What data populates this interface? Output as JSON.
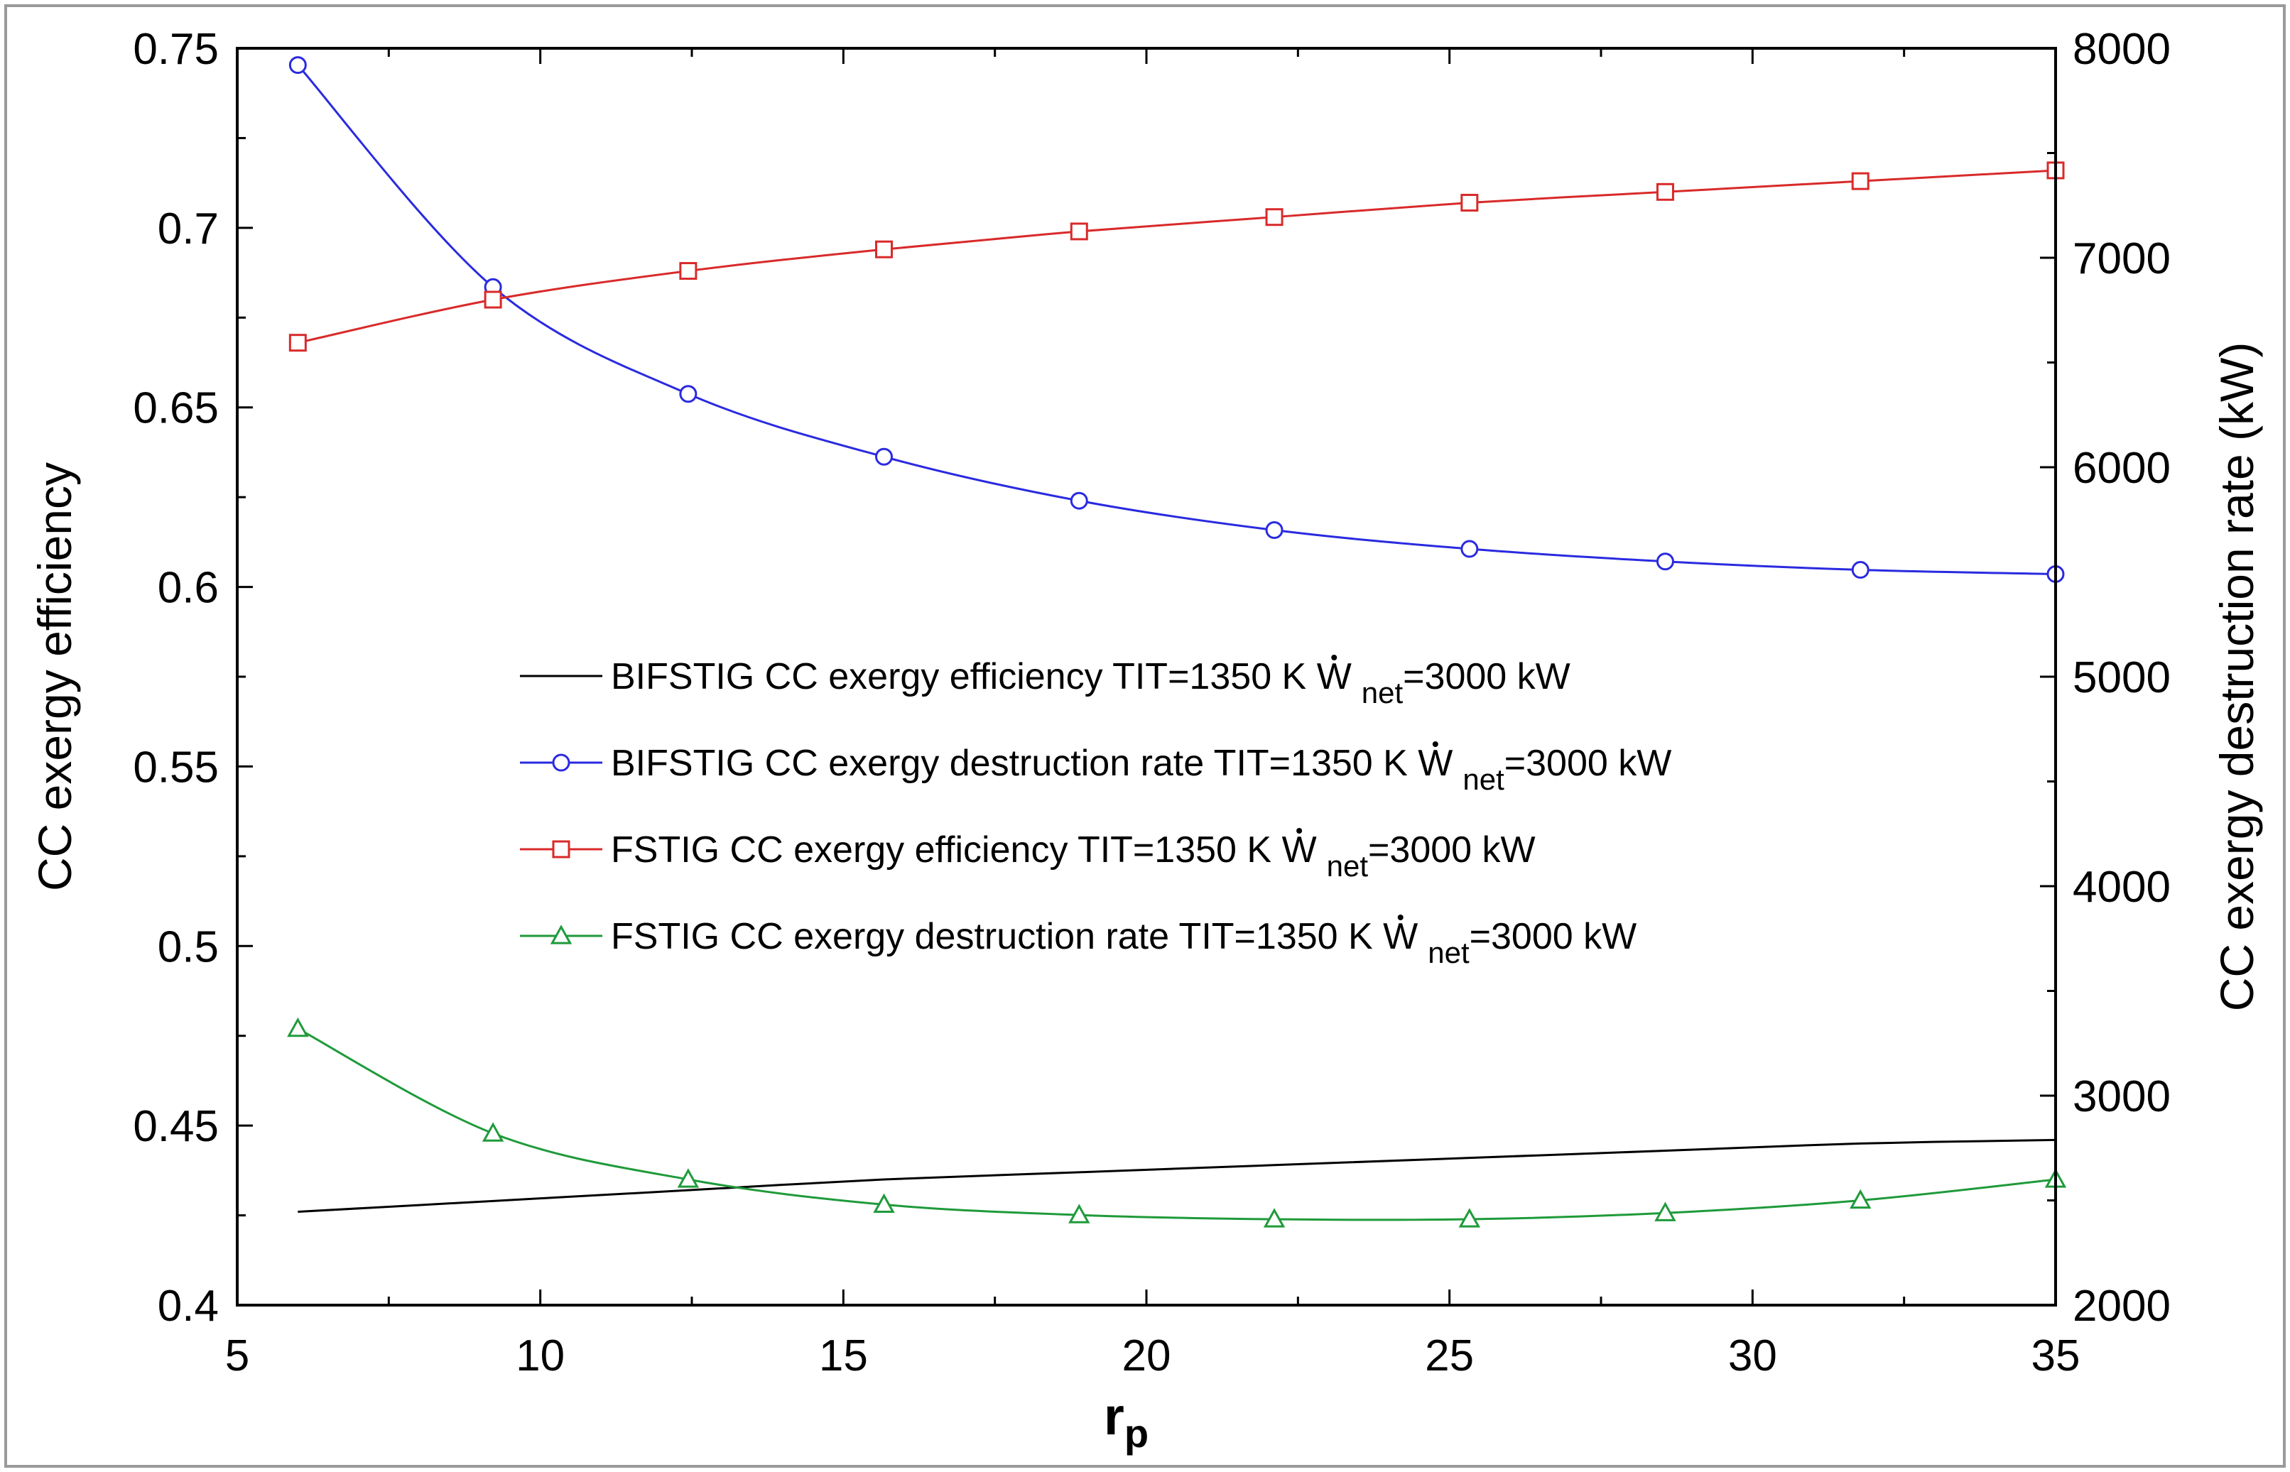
{
  "chart_data": {
    "type": "line",
    "title": "",
    "xlabel": "r",
    "xlabel_sub": "p",
    "ylabel_left": "CC exergy efficiency",
    "ylabel_right": "CC exergy destruction rate (kW)",
    "xlim": [
      5,
      35
    ],
    "ylim_left": [
      0.4,
      0.75
    ],
    "ylim_right": [
      2000,
      8000
    ],
    "x_ticks": [
      "5",
      "10",
      "15",
      "20",
      "25",
      "30",
      "35"
    ],
    "y_left_ticks": [
      "0.4",
      "0.45",
      "0.5",
      "0.55",
      "0.6",
      "0.65",
      "0.7",
      "0.75"
    ],
    "y_right_ticks": [
      "2000",
      "3000",
      "4000",
      "5000",
      "6000",
      "7000",
      "8000"
    ],
    "x": [
      6,
      9.22,
      12.44,
      15.67,
      18.89,
      22.11,
      25.33,
      28.56,
      31.78,
      35
    ],
    "series": [
      {
        "name": "BIFSTIG CC exergy efficiency",
        "label_main": "BIFSTIG CC exergy efficiency TIT=1350 K ",
        "label_w": "W",
        "label_sub": "net",
        "label_tail": "=3000 kW",
        "axis": "left",
        "marker": "none",
        "color": "#000000",
        "values": [
          0.426,
          0.429,
          0.432,
          0.435,
          0.437,
          0.439,
          0.441,
          0.443,
          0.445,
          0.446
        ]
      },
      {
        "name": "BIFSTIG CC exergy destruction rate",
        "label_main": "BIFSTIG CC exergy destruction rate TIT=1350 K ",
        "label_w": "W",
        "label_sub": "net",
        "label_tail": "=3000 kW",
        "axis": "right",
        "marker": "circle",
        "color": "#2a2ae0",
        "values": [
          7920,
          6860,
          6350,
          6050,
          5840,
          5700,
          5610,
          5550,
          5510,
          5490
        ]
      },
      {
        "name": "FSTIG CC exergy efficiency",
        "label_main": "FSTIG CC exergy efficiency TIT=1350 K ",
        "label_w": "W",
        "label_sub": "net",
        "label_tail": "=3000 kW",
        "axis": "left",
        "marker": "square",
        "color": "#d92a2a",
        "values": [
          0.668,
          0.68,
          0.688,
          0.694,
          0.699,
          0.703,
          0.707,
          0.71,
          0.713,
          0.716
        ]
      },
      {
        "name": "FSTIG CC exergy destruction rate",
        "label_main": "FSTIG CC exergy destruction rate TIT=1350 K ",
        "label_w": "W",
        "label_sub": "net",
        "label_tail": "=3000 kW",
        "axis": "right",
        "marker": "triangle",
        "color": "#1f9a3a",
        "values": [
          3320,
          2820,
          2600,
          2480,
          2430,
          2410,
          2410,
          2440,
          2500,
          2600
        ]
      }
    ],
    "legend_position": "center"
  }
}
